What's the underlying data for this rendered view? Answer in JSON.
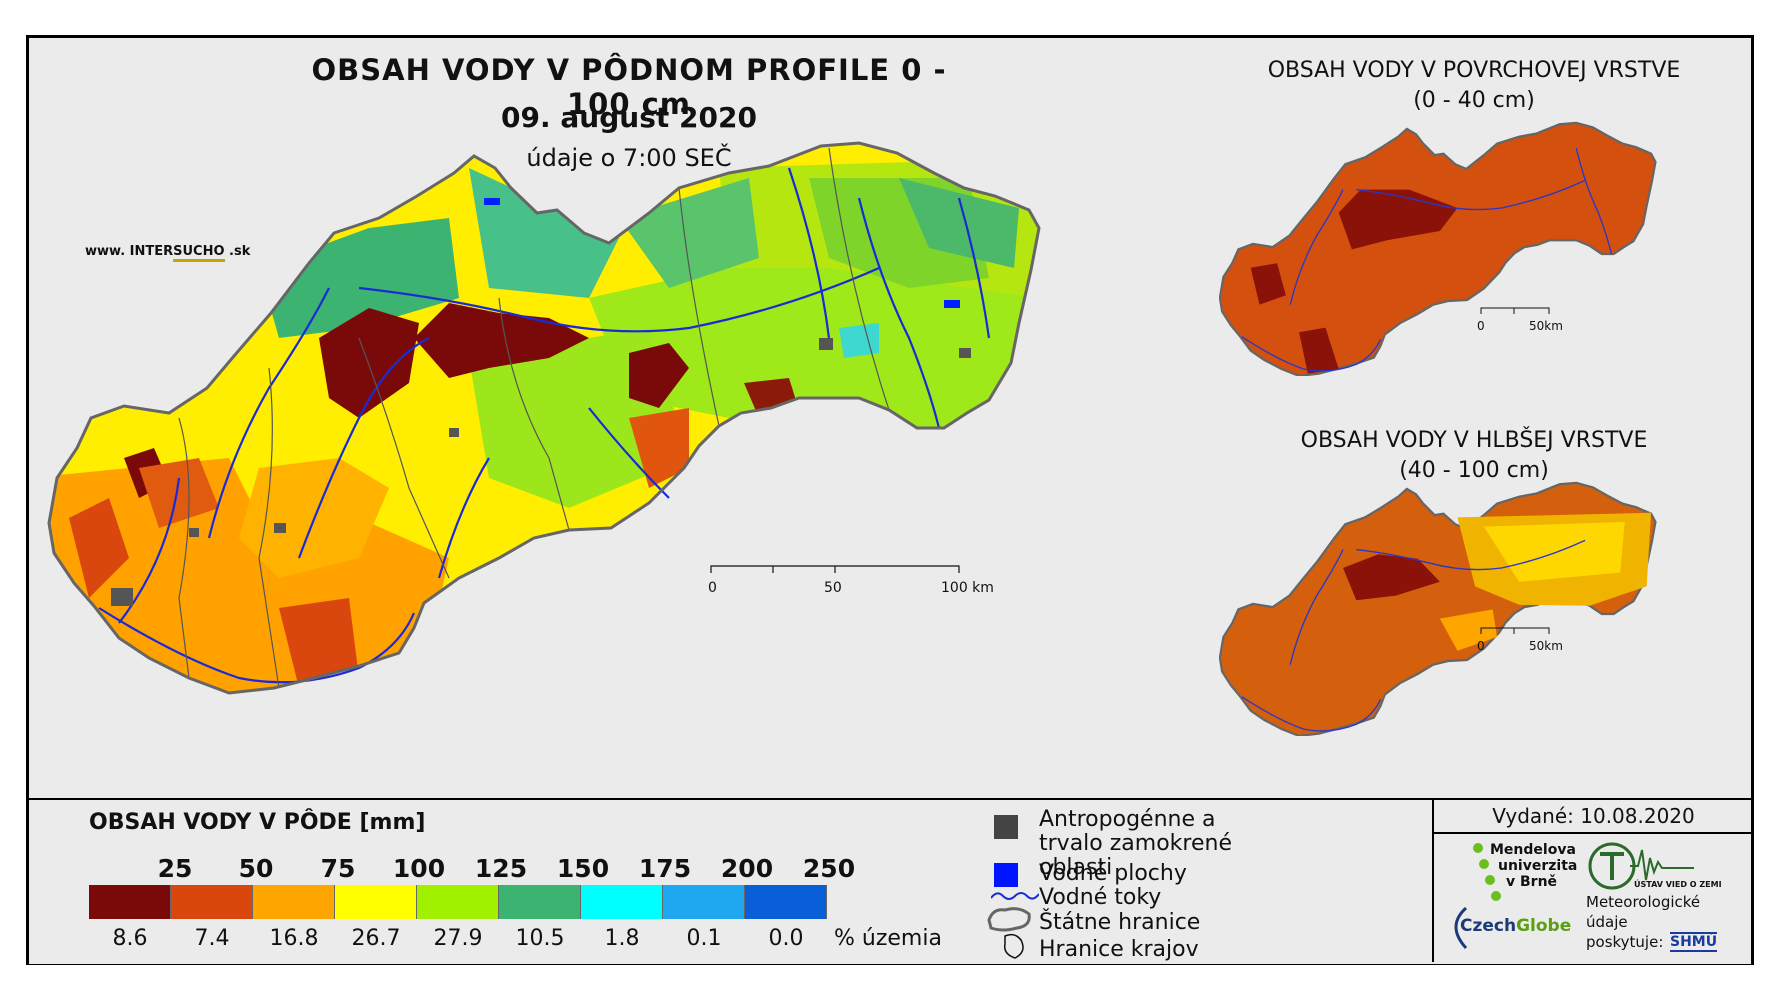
{
  "main": {
    "title": "OBSAH VODY V PÔDNOM PROFILE 0 - 100 cm",
    "date": "09. august 2020",
    "time": "údaje o 7:00 SEČ",
    "site_prefix": "www. INTER",
    "site_brand": "SUCHO",
    "site_suffix": " .sk",
    "scale_labels": [
      "0",
      "50",
      "100 km"
    ]
  },
  "inset_surface": {
    "title": "OBSAH VODY V POVRCHOVEJ VRSTVE",
    "range": "(0 - 40 cm)",
    "scale_labels": [
      "0",
      "50km"
    ]
  },
  "inset_deep": {
    "title": "OBSAH VODY V HLBŠEJ VRSTVE",
    "range": "(40 - 100 cm)",
    "scale_labels": [
      "0",
      "50km"
    ]
  },
  "legend": {
    "title": "OBSAH VODY V PÔDE [mm]",
    "thresholds": [
      "25",
      "50",
      "75",
      "100",
      "125",
      "150",
      "175",
      "200",
      "250"
    ],
    "colors": [
      "#7a0a0a",
      "#d9470e",
      "#ffa500",
      "#ffff00",
      "#a0f000",
      "#3cb371",
      "#00ffff",
      "#1fa8f0",
      "#0a5fd8"
    ],
    "percentages": [
      "8.6",
      "7.4",
      "16.8",
      "26.7",
      "27.9",
      "10.5",
      "1.8",
      "0.1",
      "0.0"
    ],
    "percent_unit": "% územia"
  },
  "symbols": {
    "anthropogenic": "Antropogénne a trvalo zamokrené oblasti",
    "water_bodies": "Vodné plochy",
    "rivers": "Vodné toky",
    "state_border": "Štátne hranice",
    "region_border": "Hranice krajov"
  },
  "credits": {
    "issued": "Vydané: 10.08.2020",
    "mendel_line1": "Mendelova",
    "mendel_line2": "univerzita",
    "mendel_line3": "v Brně",
    "czechglobe_a": "Czech",
    "czechglobe_b": "Globe",
    "ustav": "ÚSTAV VIED O ZEMI",
    "meteo_line1": "Meteorologické",
    "meteo_line2": "údaje",
    "meteo_line3": "poskytuje:",
    "shmu": "SHMÚ"
  }
}
